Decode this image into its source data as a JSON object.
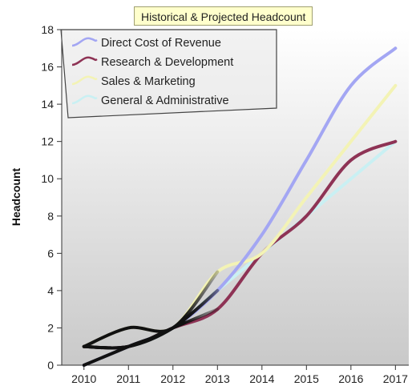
{
  "chart_data": {
    "type": "line",
    "title": "Historical & Projected Headcount",
    "xlabel": "",
    "ylabel": "Headcount",
    "x": [
      2010,
      2011,
      2012,
      2013,
      2014,
      2015,
      2016,
      2017
    ],
    "xlim": [
      2009.5,
      2017.3
    ],
    "ylim": [
      0,
      18
    ],
    "yticks": [
      0,
      2,
      4,
      6,
      8,
      10,
      12,
      14,
      16,
      18
    ],
    "historical_color": "#111111",
    "plot_bg_top": "#ffffff",
    "plot_bg_bottom": "#c9c9c9",
    "grid": false,
    "legend_position": "top-left",
    "series": [
      {
        "name": "Direct Cost of Revenue",
        "color": "#a3a6f3",
        "values": [
          0,
          1,
          2,
          4,
          7,
          11,
          15,
          17
        ]
      },
      {
        "name": "Research & Development",
        "color": "#8e3355",
        "values": [
          1,
          1,
          2,
          3,
          6,
          8,
          11,
          12
        ]
      },
      {
        "name": "Sales & Marketing",
        "color": "#f3f3b5",
        "values": [
          1,
          2,
          2,
          5,
          6,
          9,
          12,
          15
        ]
      },
      {
        "name": "General & Administrative",
        "color": "#c9f0f3",
        "values": [
          1,
          1,
          2,
          4,
          6,
          8,
          10,
          12
        ]
      }
    ]
  }
}
